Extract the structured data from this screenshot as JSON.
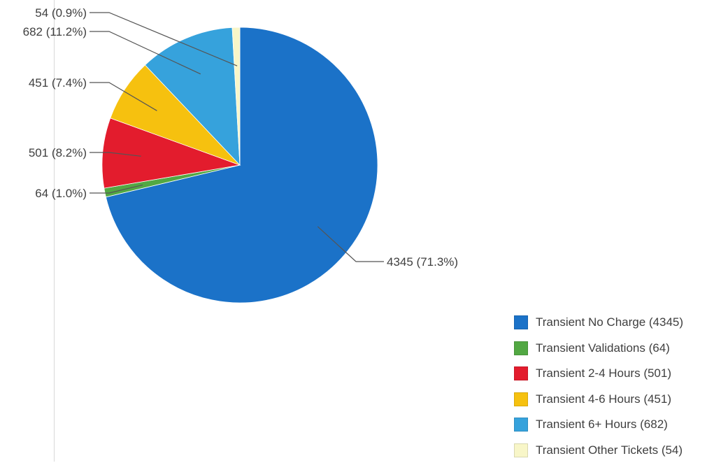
{
  "chart_data": {
    "type": "pie",
    "title": "",
    "series": [
      {
        "name": "Transient No Charge",
        "value": 4345,
        "percent": "71.3%",
        "color": "#1b72c8",
        "data_label": "4345 (71.3%)",
        "legend_label": "Transient No Charge (4345)"
      },
      {
        "name": "Transient Validations",
        "value": 64,
        "percent": "1.0%",
        "color": "#52a843",
        "data_label": "64 (1.0%)",
        "legend_label": "Transient Validations (64)"
      },
      {
        "name": "Transient 2-4 Hours",
        "value": 501,
        "percent": "8.2%",
        "color": "#e31c2d",
        "data_label": "501 (8.2%)",
        "legend_label": "Transient 2-4 Hours (501)"
      },
      {
        "name": "Transient 4-6 Hours",
        "value": 451,
        "percent": "7.4%",
        "color": "#f6c10f",
        "data_label": "451 (7.4%)",
        "legend_label": "Transient 4-6 Hours (451)"
      },
      {
        "name": "Transient 6+ Hours",
        "value": 682,
        "percent": "11.2%",
        "color": "#36a2dc",
        "data_label": "682 (11.2%)",
        "legend_label": "Transient 6+ Hours (682)"
      },
      {
        "name": "Transient Other Tickets",
        "value": 54,
        "percent": "0.9%",
        "color": "#f8f6c8",
        "data_label": "54 (0.9%)",
        "legend_label": "Transient Other Tickets (54)"
      }
    ],
    "legend_placement": "bottom-right",
    "slice_order": "clockwise from top"
  }
}
